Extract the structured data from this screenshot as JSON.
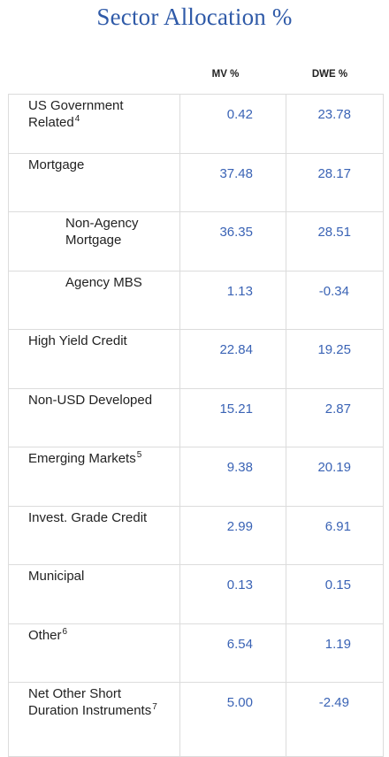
{
  "title": "Sector Allocation %",
  "columns": {
    "mv": "MV %",
    "dwe": "DWE %"
  },
  "rows": [
    {
      "label": "US Government Related",
      "sup": "4",
      "mv": "0.42",
      "dwe": "23.78"
    },
    {
      "label": "Mortgage",
      "sup": "",
      "mv": "37.48",
      "dwe": "28.17"
    },
    {
      "label": "Non-Agency Mortgage",
      "sup": "",
      "mv": "36.35",
      "dwe": "28.51"
    },
    {
      "label": "Agency MBS",
      "sup": "",
      "mv": "1.13",
      "dwe": "-0.34"
    },
    {
      "label": "High Yield Credit",
      "sup": "",
      "mv": "22.84",
      "dwe": "19.25"
    },
    {
      "label": "Non-USD Developed",
      "sup": "",
      "mv": "15.21",
      "dwe": "2.87"
    },
    {
      "label": "Emerging Markets",
      "sup": "5",
      "mv": "9.38",
      "dwe": "20.19"
    },
    {
      "label": "Invest. Grade Credit",
      "sup": "",
      "mv": "2.99",
      "dwe": "6.91"
    },
    {
      "label": "Municipal",
      "sup": "",
      "mv": "0.13",
      "dwe": "0.15"
    },
    {
      "label": "Other",
      "sup": "6",
      "mv": "6.54",
      "dwe": "1.19"
    },
    {
      "label": "Net Other Short Duration Instruments",
      "sup": "7",
      "mv": "5.00",
      "dwe": "-2.49"
    }
  ]
}
